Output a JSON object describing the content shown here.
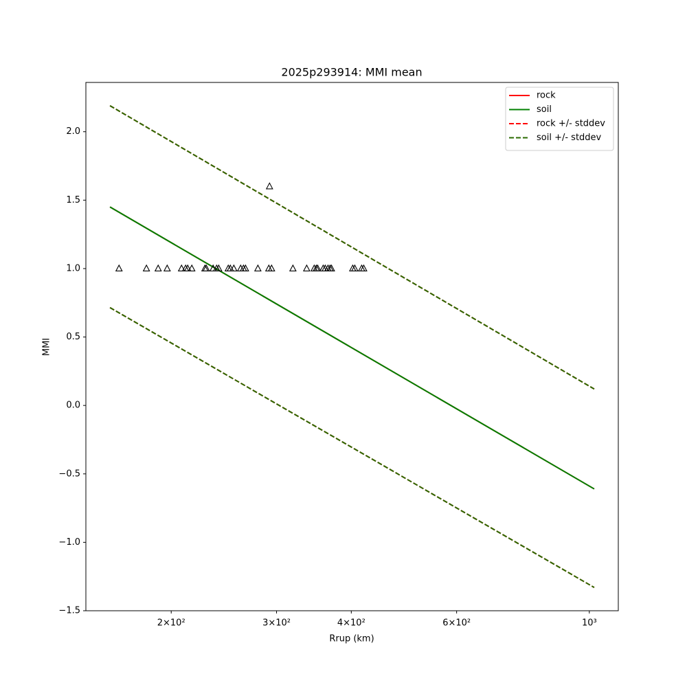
{
  "chart_data": {
    "type": "line",
    "title": "2025p293914: MMI mean",
    "x_label": "Rrup (km)",
    "y_label": "MMI",
    "x_scale": "log",
    "xlim": [
      144,
      1118
    ],
    "ylim": [
      -1.5,
      2.36
    ],
    "xticks": [
      {
        "value": 200,
        "label": "2×10²"
      },
      {
        "value": 300,
        "label": "3×10²"
      },
      {
        "value": 400,
        "label": "4×10²"
      },
      {
        "value": 600,
        "label": "6×10²"
      },
      {
        "value": 1000,
        "label": "10³"
      }
    ],
    "yticks": [
      {
        "value": -1.5,
        "label": "−1.5"
      },
      {
        "value": -1,
        "label": "−1.0"
      },
      {
        "value": -0.5,
        "label": "−0.5"
      },
      {
        "value": 0,
        "label": "0.0"
      },
      0.5,
      {
        "value": 1,
        "label": "1.0"
      },
      1.5,
      {
        "value": 2,
        "label": "2.0"
      }
    ],
    "grid": false,
    "legend": "upper right",
    "series": [
      {
        "name": "rock",
        "color": "#ff0000",
        "dash": false,
        "x": [
          158,
          1019
        ],
        "values": [
          1.45,
          -0.61
        ]
      },
      {
        "name": "soil",
        "color": "#008000",
        "dash": false,
        "x": [
          158,
          1019
        ],
        "values": [
          1.45,
          -0.61
        ]
      },
      {
        "name": "rock +/- stddev",
        "color": "#ff0000",
        "dash": true,
        "x": [
          158,
          1019,
          null,
          158,
          1019
        ],
        "values": [
          2.19,
          0.12,
          null,
          0.715,
          -1.33
        ]
      },
      {
        "name": "soil +/- stddev",
        "color": "#2a6a00",
        "dash": true,
        "x": [
          158,
          1019,
          null,
          158,
          1019
        ],
        "values": [
          2.19,
          0.12,
          null,
          0.715,
          -1.33
        ]
      },
      {
        "marker": "triangle",
        "color": "#000000",
        "x": [
          163.6,
          181.8,
          190.2,
          196.9,
          208.1,
          211.4,
          213.1,
          216.5,
          227.7,
          228.9,
          235.0,
          238.2,
          240.1,
          249.1,
          251.1,
          254.5,
          261.3,
          264.1,
          266.2,
          279.2,
          291.2,
          292.0,
          294.3,
          319.5,
          336.9,
          346.8,
          349.6,
          351.4,
          359.0,
          361.8,
          365.7,
          368.6,
          370.6,
          402.2,
          405.4,
          416.3,
          419.6
        ],
        "values": [
          1,
          1,
          1,
          1,
          1,
          1,
          1,
          1,
          1,
          1,
          1,
          1,
          1,
          1,
          1,
          1,
          1,
          1,
          1,
          1,
          1,
          1.6,
          1,
          1,
          1,
          1,
          1,
          1,
          1,
          1,
          1,
          1,
          1,
          1,
          1,
          1,
          1
        ]
      }
    ]
  }
}
